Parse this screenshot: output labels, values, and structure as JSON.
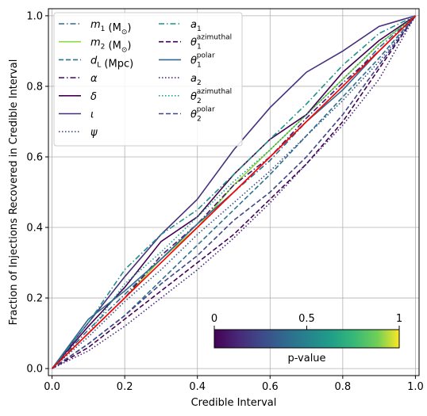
{
  "chart_data": {
    "type": "line",
    "xlabel": "Credible Interval",
    "ylabel": "Fraction of Injections Recovered in Credible Interval",
    "xlim": [
      -0.01,
      1.01
    ],
    "ylim": [
      -0.02,
      1.02
    ],
    "xticks": [
      "0.0",
      "0.2",
      "0.4",
      "0.6",
      "0.8",
      "1.0"
    ],
    "yticks": [
      "0.0",
      "0.2",
      "0.4",
      "0.6",
      "0.8",
      "1.0"
    ],
    "xtick_values": [
      0,
      0.2,
      0.4,
      0.6,
      0.8,
      1.0
    ],
    "ytick_values": [
      0,
      0.2,
      0.4,
      0.6,
      0.8,
      1.0
    ],
    "grid": true,
    "legend_position": "top-left",
    "diagonal": {
      "x": [
        0,
        1
      ],
      "y": [
        0,
        1
      ],
      "color": "#ff0000"
    },
    "colorbar": {
      "label": "p-value",
      "ticks": [
        "0",
        "0.5",
        "1"
      ],
      "tick_values": [
        0,
        0.5,
        1
      ],
      "colormap": "viridis",
      "position": "lower-right"
    },
    "series": [
      {
        "label_main": "m",
        "label_sub": "1",
        "label_suffix": " (M",
        "label_suffix_sub": "⊙",
        "label_close": ")",
        "color": "#31688e",
        "dash": "dashdot",
        "x": [
          0,
          0.1,
          0.2,
          0.3,
          0.4,
          0.5,
          0.6,
          0.7,
          0.8,
          0.9,
          1.0
        ],
        "y": [
          0,
          0.11,
          0.21,
          0.31,
          0.4,
          0.5,
          0.59,
          0.7,
          0.8,
          0.91,
          1.0
        ]
      },
      {
        "label_main": "m",
        "label_sub": "2",
        "label_suffix": " (M",
        "label_suffix_sub": "⊙",
        "label_close": ")",
        "color": "#8fd744",
        "dash": "solid",
        "x": [
          0,
          0.1,
          0.2,
          0.3,
          0.4,
          0.5,
          0.6,
          0.7,
          0.8,
          0.9,
          1.0
        ],
        "y": [
          0,
          0.1,
          0.2,
          0.31,
          0.4,
          0.52,
          0.62,
          0.72,
          0.82,
          0.92,
          1.0
        ]
      },
      {
        "label_main": "d",
        "label_sub": "L",
        "label_suffix": " (Mpc)",
        "label_suffix_sub": "",
        "label_close": "",
        "color": "#2c728e",
        "dash": "dashed",
        "x": [
          0,
          0.1,
          0.2,
          0.3,
          0.4,
          0.5,
          0.6,
          0.7,
          0.8,
          0.9,
          1.0
        ],
        "y": [
          0,
          0.07,
          0.15,
          0.25,
          0.35,
          0.45,
          0.55,
          0.66,
          0.77,
          0.88,
          1.0
        ]
      },
      {
        "label_main": "α",
        "label_sub": "",
        "label_suffix": "",
        "label_suffix_sub": "",
        "label_close": "",
        "color": "#48186a",
        "dash": "dashdot",
        "x": [
          0,
          0.1,
          0.2,
          0.3,
          0.4,
          0.5,
          0.6,
          0.7,
          0.8,
          0.9,
          1.0
        ],
        "y": [
          0,
          0.1,
          0.2,
          0.32,
          0.41,
          0.52,
          0.6,
          0.71,
          0.81,
          0.9,
          1.0
        ]
      },
      {
        "label_main": "δ",
        "label_sub": "",
        "label_suffix": "",
        "label_suffix_sub": "",
        "label_close": "",
        "color": "#440154",
        "dash": "solid",
        "x": [
          0,
          0.1,
          0.2,
          0.3,
          0.4,
          0.5,
          0.6,
          0.7,
          0.8,
          0.9,
          1.0
        ],
        "y": [
          0,
          0.12,
          0.23,
          0.36,
          0.43,
          0.55,
          0.65,
          0.72,
          0.84,
          0.93,
          1.0
        ]
      },
      {
        "label_main": "ι",
        "label_sub": "",
        "label_suffix": "",
        "label_suffix_sub": "",
        "label_close": "",
        "color": "#46307e",
        "dash": "solid",
        "x": [
          0,
          0.1,
          0.2,
          0.3,
          0.4,
          0.5,
          0.6,
          0.7,
          0.8,
          0.9,
          1.0
        ],
        "y": [
          0,
          0.13,
          0.26,
          0.38,
          0.48,
          0.62,
          0.74,
          0.84,
          0.9,
          0.97,
          1.0
        ]
      },
      {
        "label_main": "ψ",
        "label_sub": "",
        "label_suffix": "",
        "label_suffix_sub": "",
        "label_close": "",
        "color": "#3b528b",
        "dash": "dotted",
        "x": [
          0,
          0.1,
          0.2,
          0.3,
          0.4,
          0.5,
          0.6,
          0.7,
          0.8,
          0.9,
          1.0
        ],
        "y": [
          0,
          0.09,
          0.19,
          0.28,
          0.38,
          0.47,
          0.56,
          0.66,
          0.76,
          0.87,
          1.0
        ]
      },
      {
        "label_main": "a",
        "label_sub": "1",
        "label_suffix": "",
        "label_suffix_sub": "",
        "label_close": "",
        "color": "#21918c",
        "dash": "dashdot",
        "x": [
          0,
          0.1,
          0.2,
          0.3,
          0.4,
          0.5,
          0.6,
          0.7,
          0.8,
          0.9,
          1.0
        ],
        "y": [
          0,
          0.13,
          0.28,
          0.38,
          0.45,
          0.55,
          0.65,
          0.75,
          0.86,
          0.95,
          1.0
        ]
      },
      {
        "label_main": "θ",
        "label_sub": "1",
        "label_sup": "azimuthal",
        "label_suffix": "",
        "label_suffix_sub": "",
        "label_close": "",
        "color": "#440154",
        "dash": "dashed",
        "x": [
          0,
          0.1,
          0.2,
          0.3,
          0.4,
          0.5,
          0.6,
          0.7,
          0.8,
          0.9,
          1.0
        ],
        "y": [
          0,
          0.06,
          0.14,
          0.22,
          0.3,
          0.38,
          0.48,
          0.58,
          0.7,
          0.85,
          1.0
        ]
      },
      {
        "label_main": "θ",
        "label_sub": "1",
        "label_sup": "polar",
        "label_suffix": "",
        "label_suffix_sub": "",
        "label_close": "",
        "color": "#31688e",
        "dash": "solid",
        "x": [
          0,
          0.1,
          0.2,
          0.3,
          0.4,
          0.5,
          0.6,
          0.7,
          0.8,
          0.9,
          1.0
        ],
        "y": [
          0,
          0.14,
          0.22,
          0.31,
          0.41,
          0.5,
          0.6,
          0.7,
          0.79,
          0.9,
          1.0
        ]
      },
      {
        "label_main": "a",
        "label_sub": "2",
        "label_suffix": "",
        "label_suffix_sub": "",
        "label_close": "",
        "color": "#482677",
        "dash": "dotted",
        "x": [
          0,
          0.1,
          0.2,
          0.3,
          0.4,
          0.5,
          0.6,
          0.7,
          0.8,
          0.9,
          1.0
        ],
        "y": [
          0,
          0.05,
          0.12,
          0.2,
          0.28,
          0.37,
          0.47,
          0.58,
          0.69,
          0.82,
          1.0
        ]
      },
      {
        "label_main": "θ",
        "label_sub": "2",
        "label_sup": "azimuthal",
        "label_suffix": "",
        "label_suffix_sub": "",
        "label_close": "",
        "color": "#1f9e89",
        "dash": "dotted",
        "x": [
          0,
          0.1,
          0.2,
          0.3,
          0.4,
          0.5,
          0.6,
          0.7,
          0.8,
          0.9,
          1.0
        ],
        "y": [
          0,
          0.1,
          0.24,
          0.33,
          0.43,
          0.53,
          0.62,
          0.72,
          0.82,
          0.92,
          1.0
        ]
      },
      {
        "label_main": "θ",
        "label_sub": "2",
        "label_sup": "polar",
        "label_suffix": "",
        "label_suffix_sub": "",
        "label_close": "",
        "color": "#414487",
        "dash": "dashed",
        "x": [
          0,
          0.1,
          0.2,
          0.3,
          0.4,
          0.5,
          0.6,
          0.7,
          0.8,
          0.9,
          1.0
        ],
        "y": [
          0,
          0.07,
          0.15,
          0.24,
          0.32,
          0.42,
          0.5,
          0.6,
          0.72,
          0.86,
          1.0
        ]
      }
    ]
  }
}
